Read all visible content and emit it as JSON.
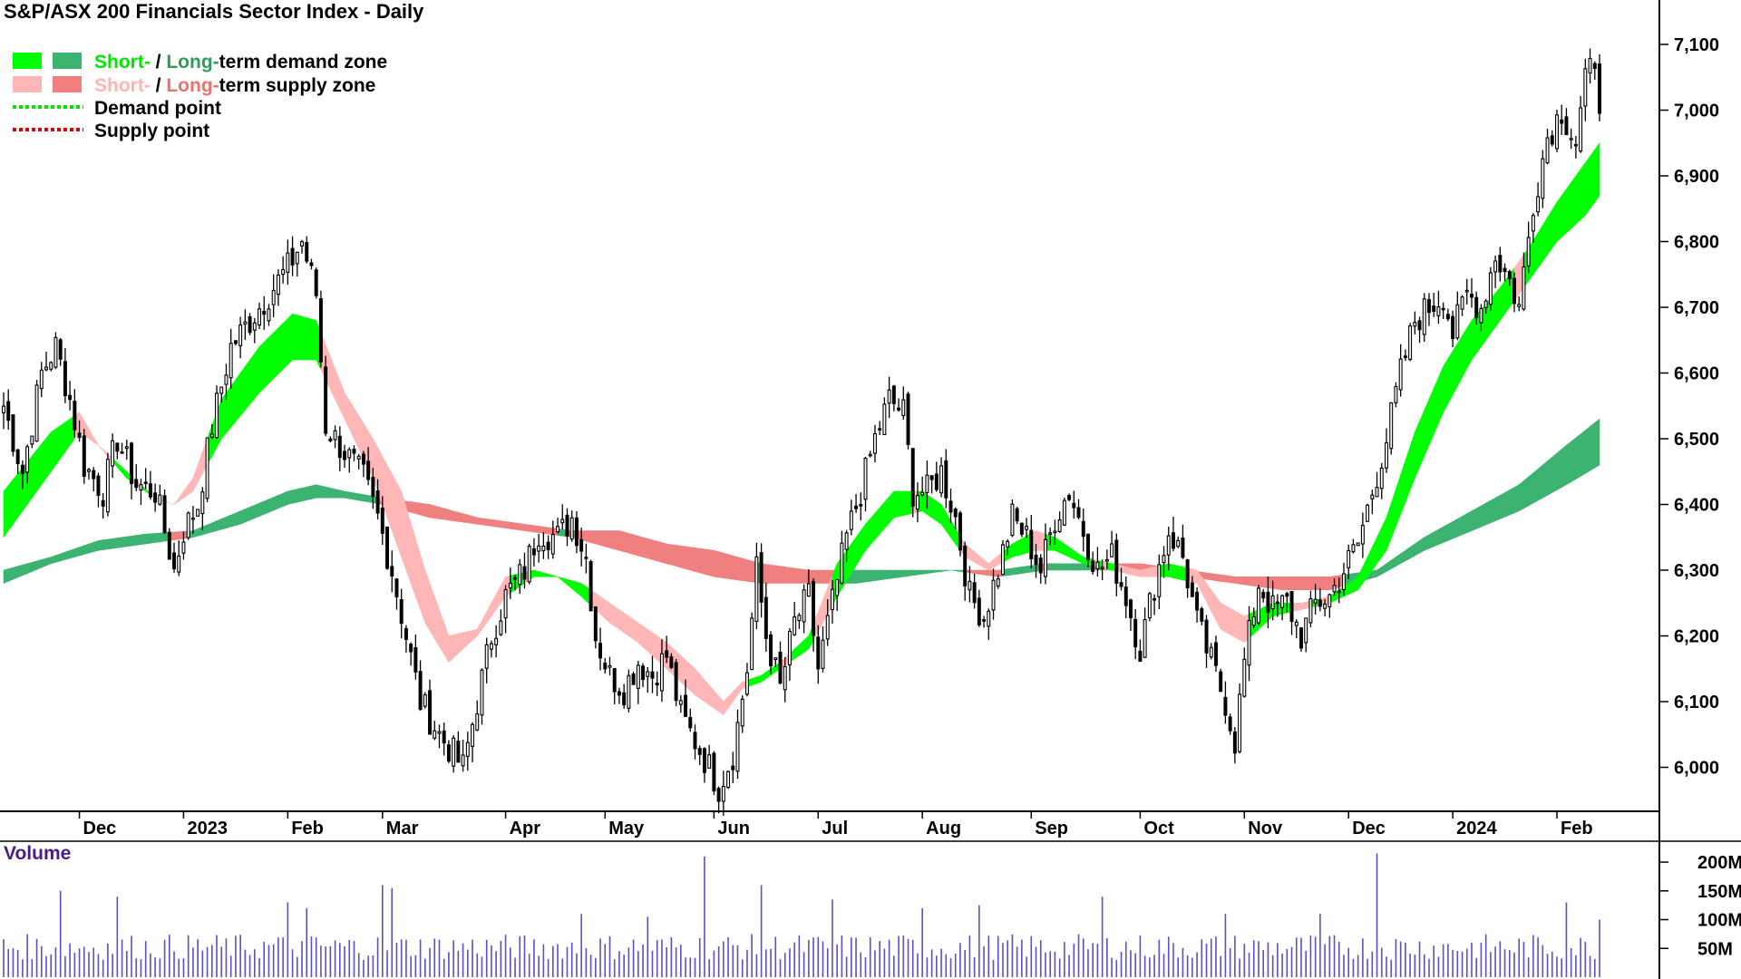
{
  "chart_data": {
    "type": "candlestick",
    "title": "S&P/ASX 200 Financials Sector Index - Daily",
    "legend": [
      {
        "key": "demand_zone",
        "parts": [
          {
            "text": "Short-",
            "color": "#00e600"
          },
          {
            "text": " / ",
            "color": "#000000"
          },
          {
            "text": "Long-",
            "color": "#2e9b5c"
          },
          {
            "text": "term demand zone",
            "color": "#000000"
          }
        ],
        "swatches": [
          "#00ff00",
          "#3cb371"
        ]
      },
      {
        "key": "supply_zone",
        "parts": [
          {
            "text": "Short-",
            "color": "#ffb3b3"
          },
          {
            "text": " / ",
            "color": "#000000"
          },
          {
            "text": "Long-",
            "color": "#f07070"
          },
          {
            "text": "term supply zone",
            "color": "#000000"
          }
        ],
        "swatches": [
          "#ffb6b6",
          "#f08080"
        ]
      },
      {
        "key": "demand_point",
        "parts": [
          {
            "text": "Demand point",
            "color": "#000000"
          }
        ],
        "line_color": "#00e600"
      },
      {
        "key": "supply_point",
        "parts": [
          {
            "text": "Supply point",
            "color": "#000000"
          }
        ],
        "line_color": "#e00000"
      }
    ],
    "colors": {
      "short_demand": "#00ff00",
      "long_demand": "#3cb371",
      "short_supply": "#ffb6b6",
      "long_supply": "#f08080",
      "crossover": "#ff7f27",
      "volume": "#5a4fcf",
      "volume_label": "#4b1a8c"
    },
    "price_axis": {
      "min": 5940,
      "max": 7140,
      "ticks": [
        6000,
        6100,
        6200,
        6300,
        6400,
        6500,
        6600,
        6700,
        6800,
        6900,
        7000,
        7100
      ],
      "tick_labels": [
        "6,000",
        "6,100",
        "6,200",
        "6,300",
        "6,400",
        "6,500",
        "6,600",
        "6,700",
        "6,800",
        "6,900",
        "7,000",
        "7,100"
      ]
    },
    "x_axis": {
      "labels": [
        {
          "label": "Dec",
          "day": 16
        },
        {
          "label": "2023",
          "day": 38
        },
        {
          "label": "Feb",
          "day": 60
        },
        {
          "label": "Mar",
          "day": 80
        },
        {
          "label": "Apr",
          "day": 106
        },
        {
          "label": "May",
          "day": 127
        },
        {
          "label": "Jun",
          "day": 150
        },
        {
          "label": "Jul",
          "day": 172
        },
        {
          "label": "Aug",
          "day": 194
        },
        {
          "label": "Sep",
          "day": 217
        },
        {
          "label": "Oct",
          "day": 240
        },
        {
          "label": "Nov",
          "day": 262
        },
        {
          "label": "Dec",
          "day": 284
        },
        {
          "label": "2024",
          "day": 306
        },
        {
          "label": "Feb",
          "day": 328
        }
      ],
      "total_days": 338
    },
    "price_path": [
      [
        0,
        6550
      ],
      [
        4,
        6450
      ],
      [
        8,
        6600
      ],
      [
        11,
        6640
      ],
      [
        14,
        6560
      ],
      [
        17,
        6460
      ],
      [
        21,
        6420
      ],
      [
        24,
        6500
      ],
      [
        28,
        6430
      ],
      [
        32,
        6420
      ],
      [
        36,
        6300
      ],
      [
        38,
        6360
      ],
      [
        41,
        6400
      ],
      [
        44,
        6520
      ],
      [
        48,
        6640
      ],
      [
        52,
        6680
      ],
      [
        56,
        6720
      ],
      [
        60,
        6760
      ],
      [
        63,
        6800
      ],
      [
        66,
        6720
      ],
      [
        68,
        6520
      ],
      [
        72,
        6480
      ],
      [
        76,
        6440
      ],
      [
        79,
        6380
      ],
      [
        82,
        6300
      ],
      [
        85,
        6200
      ],
      [
        88,
        6100
      ],
      [
        92,
        6050
      ],
      [
        95,
        6020
      ],
      [
        97,
        6000
      ],
      [
        100,
        6100
      ],
      [
        103,
        6200
      ],
      [
        106,
        6260
      ],
      [
        110,
        6300
      ],
      [
        113,
        6360
      ],
      [
        117,
        6350
      ],
      [
        120,
        6380
      ],
      [
        123,
        6320
      ],
      [
        125,
        6200
      ],
      [
        128,
        6140
      ],
      [
        131,
        6120
      ],
      [
        134,
        6160
      ],
      [
        137,
        6140
      ],
      [
        140,
        6170
      ],
      [
        143,
        6080
      ],
      [
        146,
        6040
      ],
      [
        149,
        6000
      ],
      [
        151,
        5970
      ],
      [
        154,
        6020
      ],
      [
        157,
        6150
      ],
      [
        159,
        6300
      ],
      [
        161,
        6200
      ],
      [
        164,
        6120
      ],
      [
        167,
        6220
      ],
      [
        170,
        6260
      ],
      [
        172,
        6150
      ],
      [
        175,
        6250
      ],
      [
        178,
        6350
      ],
      [
        181,
        6420
      ],
      [
        184,
        6500
      ],
      [
        187,
        6560
      ],
      [
        190,
        6540
      ],
      [
        192,
        6420
      ],
      [
        195,
        6420
      ],
      [
        198,
        6450
      ],
      [
        201,
        6380
      ],
      [
        204,
        6260
      ],
      [
        207,
        6230
      ],
      [
        210,
        6300
      ],
      [
        213,
        6380
      ],
      [
        216,
        6350
      ],
      [
        219,
        6300
      ],
      [
        222,
        6380
      ],
      [
        225,
        6420
      ],
      [
        228,
        6360
      ],
      [
        231,
        6300
      ],
      [
        234,
        6320
      ],
      [
        237,
        6260
      ],
      [
        240,
        6180
      ],
      [
        243,
        6280
      ],
      [
        246,
        6360
      ],
      [
        249,
        6320
      ],
      [
        252,
        6220
      ],
      [
        255,
        6160
      ],
      [
        258,
        6100
      ],
      [
        260,
        6040
      ],
      [
        262,
        6160
      ],
      [
        265,
        6280
      ],
      [
        268,
        6240
      ],
      [
        271,
        6250
      ],
      [
        274,
        6200
      ],
      [
        277,
        6250
      ],
      [
        280,
        6260
      ],
      [
        283,
        6300
      ],
      [
        286,
        6340
      ],
      [
        289,
        6420
      ],
      [
        292,
        6500
      ],
      [
        295,
        6600
      ],
      [
        298,
        6680
      ],
      [
        301,
        6700
      ],
      [
        304,
        6720
      ],
      [
        306,
        6660
      ],
      [
        309,
        6720
      ],
      [
        312,
        6700
      ],
      [
        315,
        6780
      ],
      [
        318,
        6740
      ],
      [
        320,
        6700
      ],
      [
        323,
        6860
      ],
      [
        326,
        6960
      ],
      [
        329,
        7000
      ],
      [
        332,
        6950
      ],
      [
        334,
        7040
      ],
      [
        336,
        7080
      ],
      [
        337,
        7020
      ]
    ],
    "short_zone": [
      [
        0,
        6350,
        6420
      ],
      [
        10,
        6450,
        6510
      ],
      [
        16,
        6510,
        6540
      ],
      [
        20,
        6490,
        6490
      ],
      [
        26,
        6440,
        6450
      ],
      [
        32,
        6410,
        6410
      ],
      [
        36,
        6400,
        6400
      ],
      [
        40,
        6420,
        6440
      ],
      [
        46,
        6500,
        6560
      ],
      [
        54,
        6570,
        6640
      ],
      [
        61,
        6620,
        6690
      ],
      [
        66,
        6620,
        6680
      ],
      [
        72,
        6530,
        6570
      ],
      [
        78,
        6440,
        6500
      ],
      [
        84,
        6320,
        6420
      ],
      [
        89,
        6220,
        6300
      ],
      [
        94,
        6160,
        6200
      ],
      [
        100,
        6200,
        6210
      ],
      [
        106,
        6260,
        6290
      ],
      [
        112,
        6290,
        6300
      ],
      [
        117,
        6290,
        6290
      ],
      [
        122,
        6260,
        6280
      ],
      [
        128,
        6220,
        6250
      ],
      [
        134,
        6190,
        6220
      ],
      [
        140,
        6150,
        6190
      ],
      [
        146,
        6110,
        6150
      ],
      [
        152,
        6080,
        6100
      ],
      [
        156,
        6120,
        6130
      ],
      [
        160,
        6130,
        6140
      ],
      [
        164,
        6150,
        6160
      ],
      [
        170,
        6180,
        6200
      ],
      [
        176,
        6260,
        6310
      ],
      [
        182,
        6330,
        6370
      ],
      [
        188,
        6380,
        6420
      ],
      [
        194,
        6390,
        6420
      ],
      [
        198,
        6370,
        6400
      ],
      [
        203,
        6320,
        6340
      ],
      [
        208,
        6300,
        6310
      ],
      [
        213,
        6320,
        6340
      ],
      [
        218,
        6330,
        6360
      ],
      [
        222,
        6330,
        6350
      ],
      [
        228,
        6310,
        6320
      ],
      [
        234,
        6300,
        6310
      ],
      [
        240,
        6290,
        6300
      ],
      [
        246,
        6290,
        6310
      ],
      [
        252,
        6280,
        6300
      ],
      [
        257,
        6210,
        6250
      ],
      [
        262,
        6190,
        6230
      ],
      [
        268,
        6230,
        6250
      ],
      [
        274,
        6240,
        6250
      ],
      [
        280,
        6250,
        6260
      ],
      [
        286,
        6270,
        6290
      ],
      [
        292,
        6330,
        6380
      ],
      [
        298,
        6440,
        6510
      ],
      [
        304,
        6540,
        6610
      ],
      [
        310,
        6620,
        6680
      ],
      [
        316,
        6680,
        6730
      ],
      [
        322,
        6740,
        6790
      ],
      [
        328,
        6800,
        6860
      ],
      [
        334,
        6840,
        6920
      ],
      [
        337,
        6870,
        6950
      ]
    ],
    "long_zone": [
      [
        0,
        6280,
        6300
      ],
      [
        10,
        6310,
        6320
      ],
      [
        20,
        6330,
        6345
      ],
      [
        30,
        6340,
        6355
      ],
      [
        40,
        6350,
        6360
      ],
      [
        50,
        6370,
        6390
      ],
      [
        60,
        6400,
        6420
      ],
      [
        66,
        6410,
        6430
      ],
      [
        72,
        6410,
        6420
      ],
      [
        80,
        6400,
        6410
      ],
      [
        90,
        6380,
        6400
      ],
      [
        100,
        6370,
        6380
      ],
      [
        110,
        6360,
        6370
      ],
      [
        120,
        6350,
        6360
      ],
      [
        130,
        6330,
        6360
      ],
      [
        140,
        6310,
        6340
      ],
      [
        150,
        6290,
        6330
      ],
      [
        160,
        6280,
        6310
      ],
      [
        170,
        6280,
        6300
      ],
      [
        180,
        6280,
        6300
      ],
      [
        190,
        6290,
        6300
      ],
      [
        200,
        6300,
        6300
      ],
      [
        210,
        6290,
        6300
      ],
      [
        220,
        6300,
        6310
      ],
      [
        230,
        6300,
        6310
      ],
      [
        240,
        6300,
        6310
      ],
      [
        250,
        6290,
        6300
      ],
      [
        260,
        6280,
        6290
      ],
      [
        270,
        6270,
        6290
      ],
      [
        280,
        6270,
        6290
      ],
      [
        290,
        6290,
        6300
      ],
      [
        300,
        6330,
        6350
      ],
      [
        310,
        6360,
        6390
      ],
      [
        320,
        6390,
        6430
      ],
      [
        330,
        6430,
        6490
      ],
      [
        337,
        6460,
        6530
      ]
    ],
    "volume_axis": {
      "max": 230000000,
      "ticks": [
        50000000,
        100000000,
        150000000,
        200000000
      ],
      "tick_labels": [
        "50M",
        "100M",
        "150M",
        "200M"
      ],
      "label": "Volume"
    },
    "volume_spikes": [
      [
        12,
        150000000
      ],
      [
        24,
        140000000
      ],
      [
        60,
        130000000
      ],
      [
        64,
        120000000
      ],
      [
        80,
        160000000
      ],
      [
        82,
        155000000
      ],
      [
        122,
        110000000
      ],
      [
        136,
        105000000
      ],
      [
        148,
        210000000
      ],
      [
        160,
        160000000
      ],
      [
        175,
        135000000
      ],
      [
        194,
        120000000
      ],
      [
        206,
        125000000
      ],
      [
        232,
        140000000
      ],
      [
        258,
        110000000
      ],
      [
        278,
        110000000
      ],
      [
        290,
        215000000
      ],
      [
        330,
        130000000
      ],
      [
        337,
        100000000
      ]
    ]
  }
}
